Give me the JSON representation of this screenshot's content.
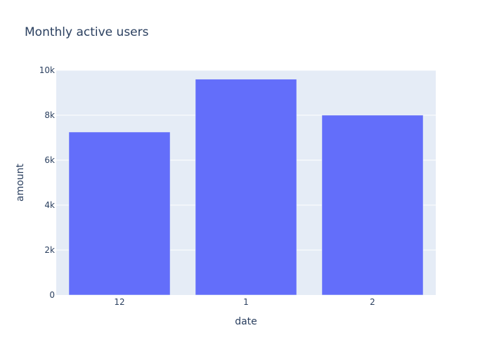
{
  "chart_data": {
    "type": "bar",
    "title": "Monthly active users",
    "xlabel": "date",
    "ylabel": "amount",
    "categories": [
      "12",
      "1",
      "2"
    ],
    "values": [
      7250,
      9600,
      8000
    ],
    "ylim": [
      0,
      10000
    ],
    "yticks": [
      0,
      2000,
      4000,
      6000,
      8000,
      10000
    ],
    "ytick_labels": [
      "0",
      "2k",
      "4k",
      "6k",
      "8k",
      "10k"
    ],
    "grid": true,
    "legend": "none"
  },
  "colors": {
    "bar": "#636efa",
    "plot_background": "#e5ecf6",
    "paper_background": "#ffffff",
    "gridline": "#ffffff",
    "title_text": "#2a3f5f",
    "tick_text": "#2a3f5f"
  }
}
